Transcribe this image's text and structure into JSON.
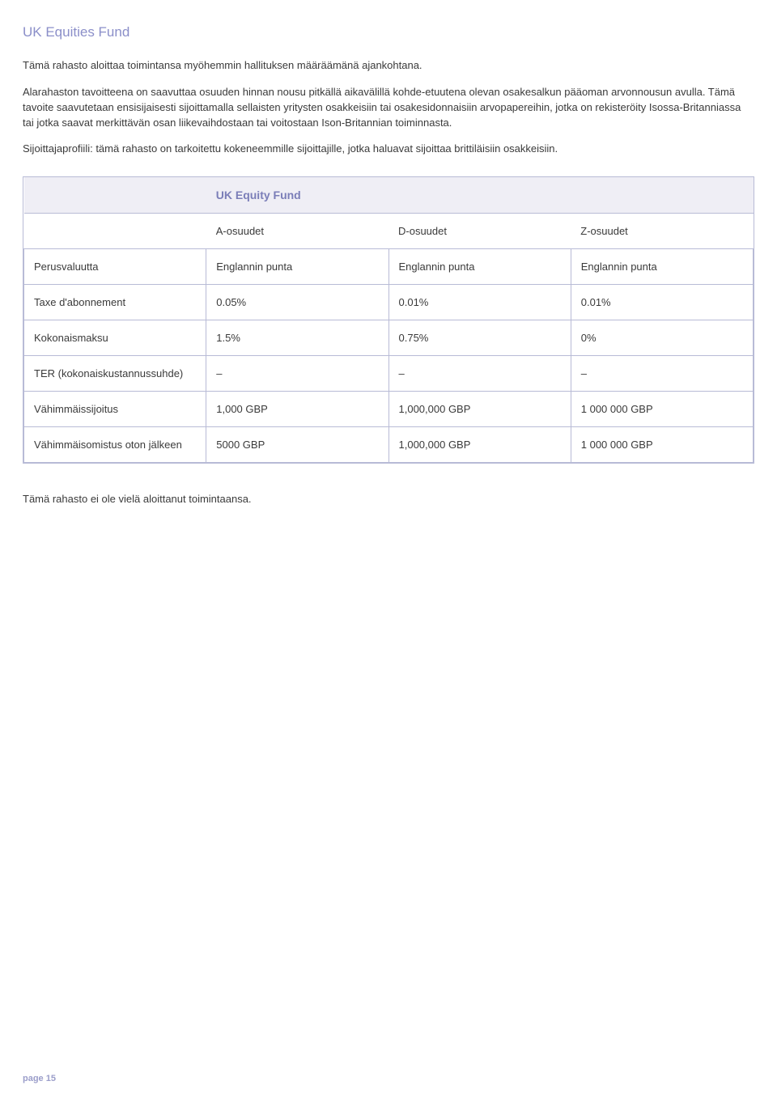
{
  "page": {
    "title": "UK Equities Fund",
    "paragraphs": [
      "Tämä rahasto aloittaa toimintansa myöhemmin hallituksen määräämänä ajankohtana.",
      "Alarahaston tavoitteena on saavuttaa osuuden hinnan nousu pitkällä aikavälillä kohde-etuutena olevan osakesalkun pääoman arvonnousun avulla. Tämä tavoite saavutetaan ensisijaisesti sijoittamalla sellaisten yritysten osakkeisiin tai osakesidonnaisiin arvopapereihin, jotka on rekisteröity Isossa-Britanniassa tai jotka saavat merkittävän osan liikevaihdostaan tai voitostaan Ison-Britannian toiminnasta.",
      "Sijoittajaprofiili: tämä rahasto on tarkoitettu kokeneemmille sijoittajille, jotka haluavat sijoittaa brittiläisiin osakkeisiin."
    ],
    "post_table": "Tämä rahasto ei ole vielä aloittanut toimintaansa.",
    "footer": "page 15"
  },
  "table": {
    "title": "UK Equity Fund",
    "columns": [
      "A-osuudet",
      "D-osuudet",
      "Z-osuudet"
    ],
    "rows": [
      {
        "label": "Perusvaluutta",
        "a": "Englannin punta",
        "d": "Englannin punta",
        "z": "Englannin punta"
      },
      {
        "label": "Taxe d'abonnement",
        "a": "0.05%",
        "d": "0.01%",
        "z": "0.01%"
      },
      {
        "label": "Kokonaismaksu",
        "a": "1.5%",
        "d": "0.75%",
        "z": "0%"
      },
      {
        "label": "TER (kokonaiskustannussuhde)",
        "a": "–",
        "d": "–",
        "z": "–"
      },
      {
        "label": "Vähimmäissijoitus",
        "a": "1,000 GBP",
        "d": "1,000,000 GBP",
        "z": "1 000 000 GBP"
      },
      {
        "label": "Vähimmäisomistus oton jälkeen",
        "a": "5000 GBP",
        "d": "1,000,000 GBP",
        "z": "1 000 000 GBP"
      }
    ]
  }
}
